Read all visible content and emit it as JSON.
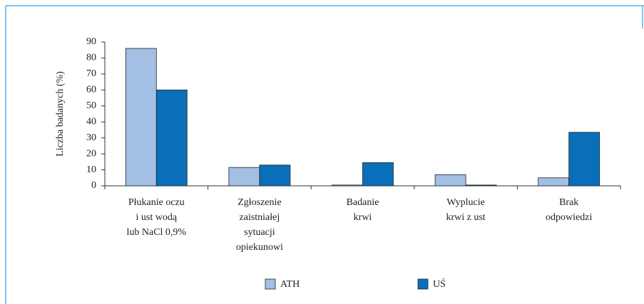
{
  "chart_data": {
    "type": "bar",
    "y_label": "Liczba badanych (%)",
    "categories": [
      "Płukanie oczu\ni ust wodą\nlub NaCl 0,9%",
      "Zgłoszenie\nzaistniałej\nsytuacji\nopiekunowi",
      "Badanie\nkrwi",
      "Wyplucie\nkrwi z ust",
      "Brak\nodpowiedzi"
    ],
    "series": [
      {
        "name": "ATH",
        "color": "#a3bfe4",
        "values": [
          86,
          11.5,
          0.5,
          7,
          5
        ]
      },
      {
        "name": "UŚ",
        "color": "#0a6fba",
        "values": [
          60,
          13,
          14.5,
          0.5,
          33.5
        ]
      }
    ],
    "ylim": [
      0,
      90
    ],
    "yticks": [
      0,
      10,
      20,
      30,
      40,
      50,
      60,
      70,
      80,
      90
    ]
  }
}
